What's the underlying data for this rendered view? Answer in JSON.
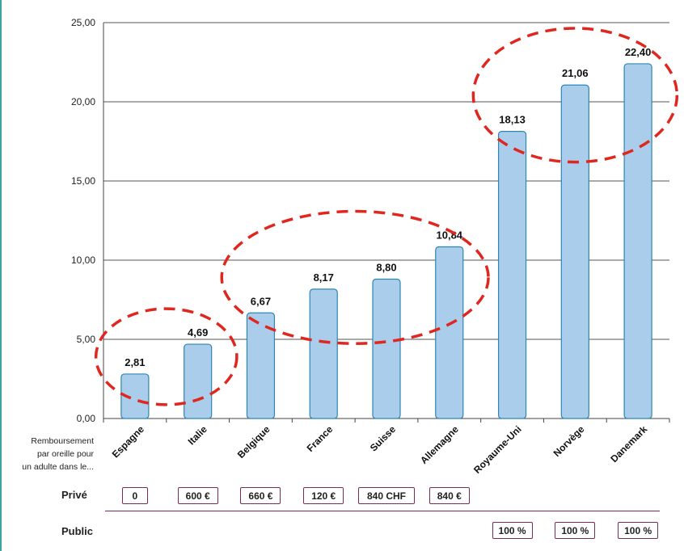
{
  "chart_data": {
    "type": "bar",
    "categories": [
      "Espagne",
      "Italie",
      "Belgique",
      "France",
      "Suisse",
      "Allemagne",
      "Royaume-Uni",
      "Norvège",
      "Danemark"
    ],
    "values": [
      2.81,
      4.69,
      6.67,
      8.17,
      8.8,
      10.84,
      18.13,
      21.06,
      22.4
    ],
    "value_labels": [
      "2,81",
      "4,69",
      "6,67",
      "8,17",
      "8,80",
      "10,84",
      "18,13",
      "21,06",
      "22,40"
    ],
    "ylim": [
      0,
      25
    ],
    "yticks": [
      "0,00",
      "5,00",
      "10,00",
      "15,00",
      "20,00",
      "25,00"
    ],
    "ytick_values": [
      0,
      5,
      10,
      15,
      20,
      25
    ],
    "grid": true,
    "bar_color": "#a9cdeb",
    "bar_edge_color": "#2e86b3",
    "highlight_color": "#e0271f",
    "highlight_groups": [
      [
        "Espagne",
        "Italie"
      ],
      [
        "Belgique",
        "France",
        "Suisse",
        "Allemagne"
      ],
      [
        "Royaume-Uni",
        "Norvège",
        "Danemark"
      ]
    ]
  },
  "table": {
    "note": "Remboursement par oreille pour un adulte dans le...",
    "note_lines": [
      "Remboursement",
      "par oreille pour",
      "un adulte dans le..."
    ],
    "rows": [
      {
        "label": "Privé",
        "cells": [
          "0",
          "600 €",
          "660 €",
          "120 €",
          "840 CHF",
          "840 €",
          "",
          "",
          ""
        ]
      },
      {
        "label": "Public",
        "cells": [
          "",
          "",
          "",
          "",
          "",
          "",
          "100 %",
          "100 %",
          "100 %"
        ]
      }
    ]
  },
  "colors": {
    "frame_accent": "#3aa6a6",
    "box_border": "#7a2a55"
  }
}
